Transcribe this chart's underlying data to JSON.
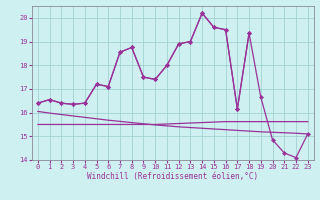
{
  "xlabel": "Windchill (Refroidissement éolien,°C)",
  "x_full": [
    0,
    1,
    2,
    3,
    4,
    5,
    6,
    7,
    8,
    9,
    10,
    11,
    12,
    13,
    14,
    15,
    16,
    17,
    18,
    19,
    20,
    21,
    22,
    23
  ],
  "x_partial": [
    0,
    1,
    2,
    3,
    4,
    5,
    6,
    7,
    8,
    9,
    10,
    11,
    12,
    13,
    14,
    15,
    16,
    17,
    18
  ],
  "line_main": [
    16.4,
    16.55,
    16.4,
    16.35,
    16.4,
    17.2,
    17.1,
    18.55,
    18.75,
    17.5,
    17.4,
    18.0,
    18.9,
    19.0,
    20.2,
    19.6,
    19.5,
    16.15,
    19.35,
    16.65,
    14.85,
    14.3,
    14.1,
    15.1
  ],
  "line_partial": [
    16.4,
    16.55,
    16.4,
    16.35,
    16.4,
    17.2,
    17.1,
    18.55,
    18.75,
    17.5,
    17.4,
    18.0,
    18.9,
    19.0,
    20.2,
    19.6,
    19.5,
    16.15,
    19.35
  ],
  "line_flat": [
    15.5,
    15.5,
    15.5,
    15.5,
    15.5,
    15.5,
    15.5,
    15.5,
    15.5,
    15.5,
    15.5,
    15.52,
    15.54,
    15.56,
    15.58,
    15.6,
    15.62,
    15.62,
    15.62,
    15.62,
    15.62,
    15.62,
    15.62,
    15.62
  ],
  "line_decline": [
    16.05,
    15.98,
    15.92,
    15.86,
    15.8,
    15.74,
    15.68,
    15.63,
    15.58,
    15.53,
    15.48,
    15.44,
    15.4,
    15.37,
    15.34,
    15.31,
    15.28,
    15.25,
    15.22,
    15.19,
    15.17,
    15.15,
    15.13,
    15.1
  ],
  "background_color": "#cff0f0",
  "grid_color": "#99cccc",
  "line_color": "#993399",
  "ylim": [
    14.0,
    20.5
  ],
  "xlim": [
    -0.5,
    23.5
  ],
  "yticks": [
    14,
    15,
    16,
    17,
    18,
    19,
    20
  ],
  "xticks": [
    0,
    1,
    2,
    3,
    4,
    5,
    6,
    7,
    8,
    9,
    10,
    11,
    12,
    13,
    14,
    15,
    16,
    17,
    18,
    19,
    20,
    21,
    22,
    23
  ]
}
